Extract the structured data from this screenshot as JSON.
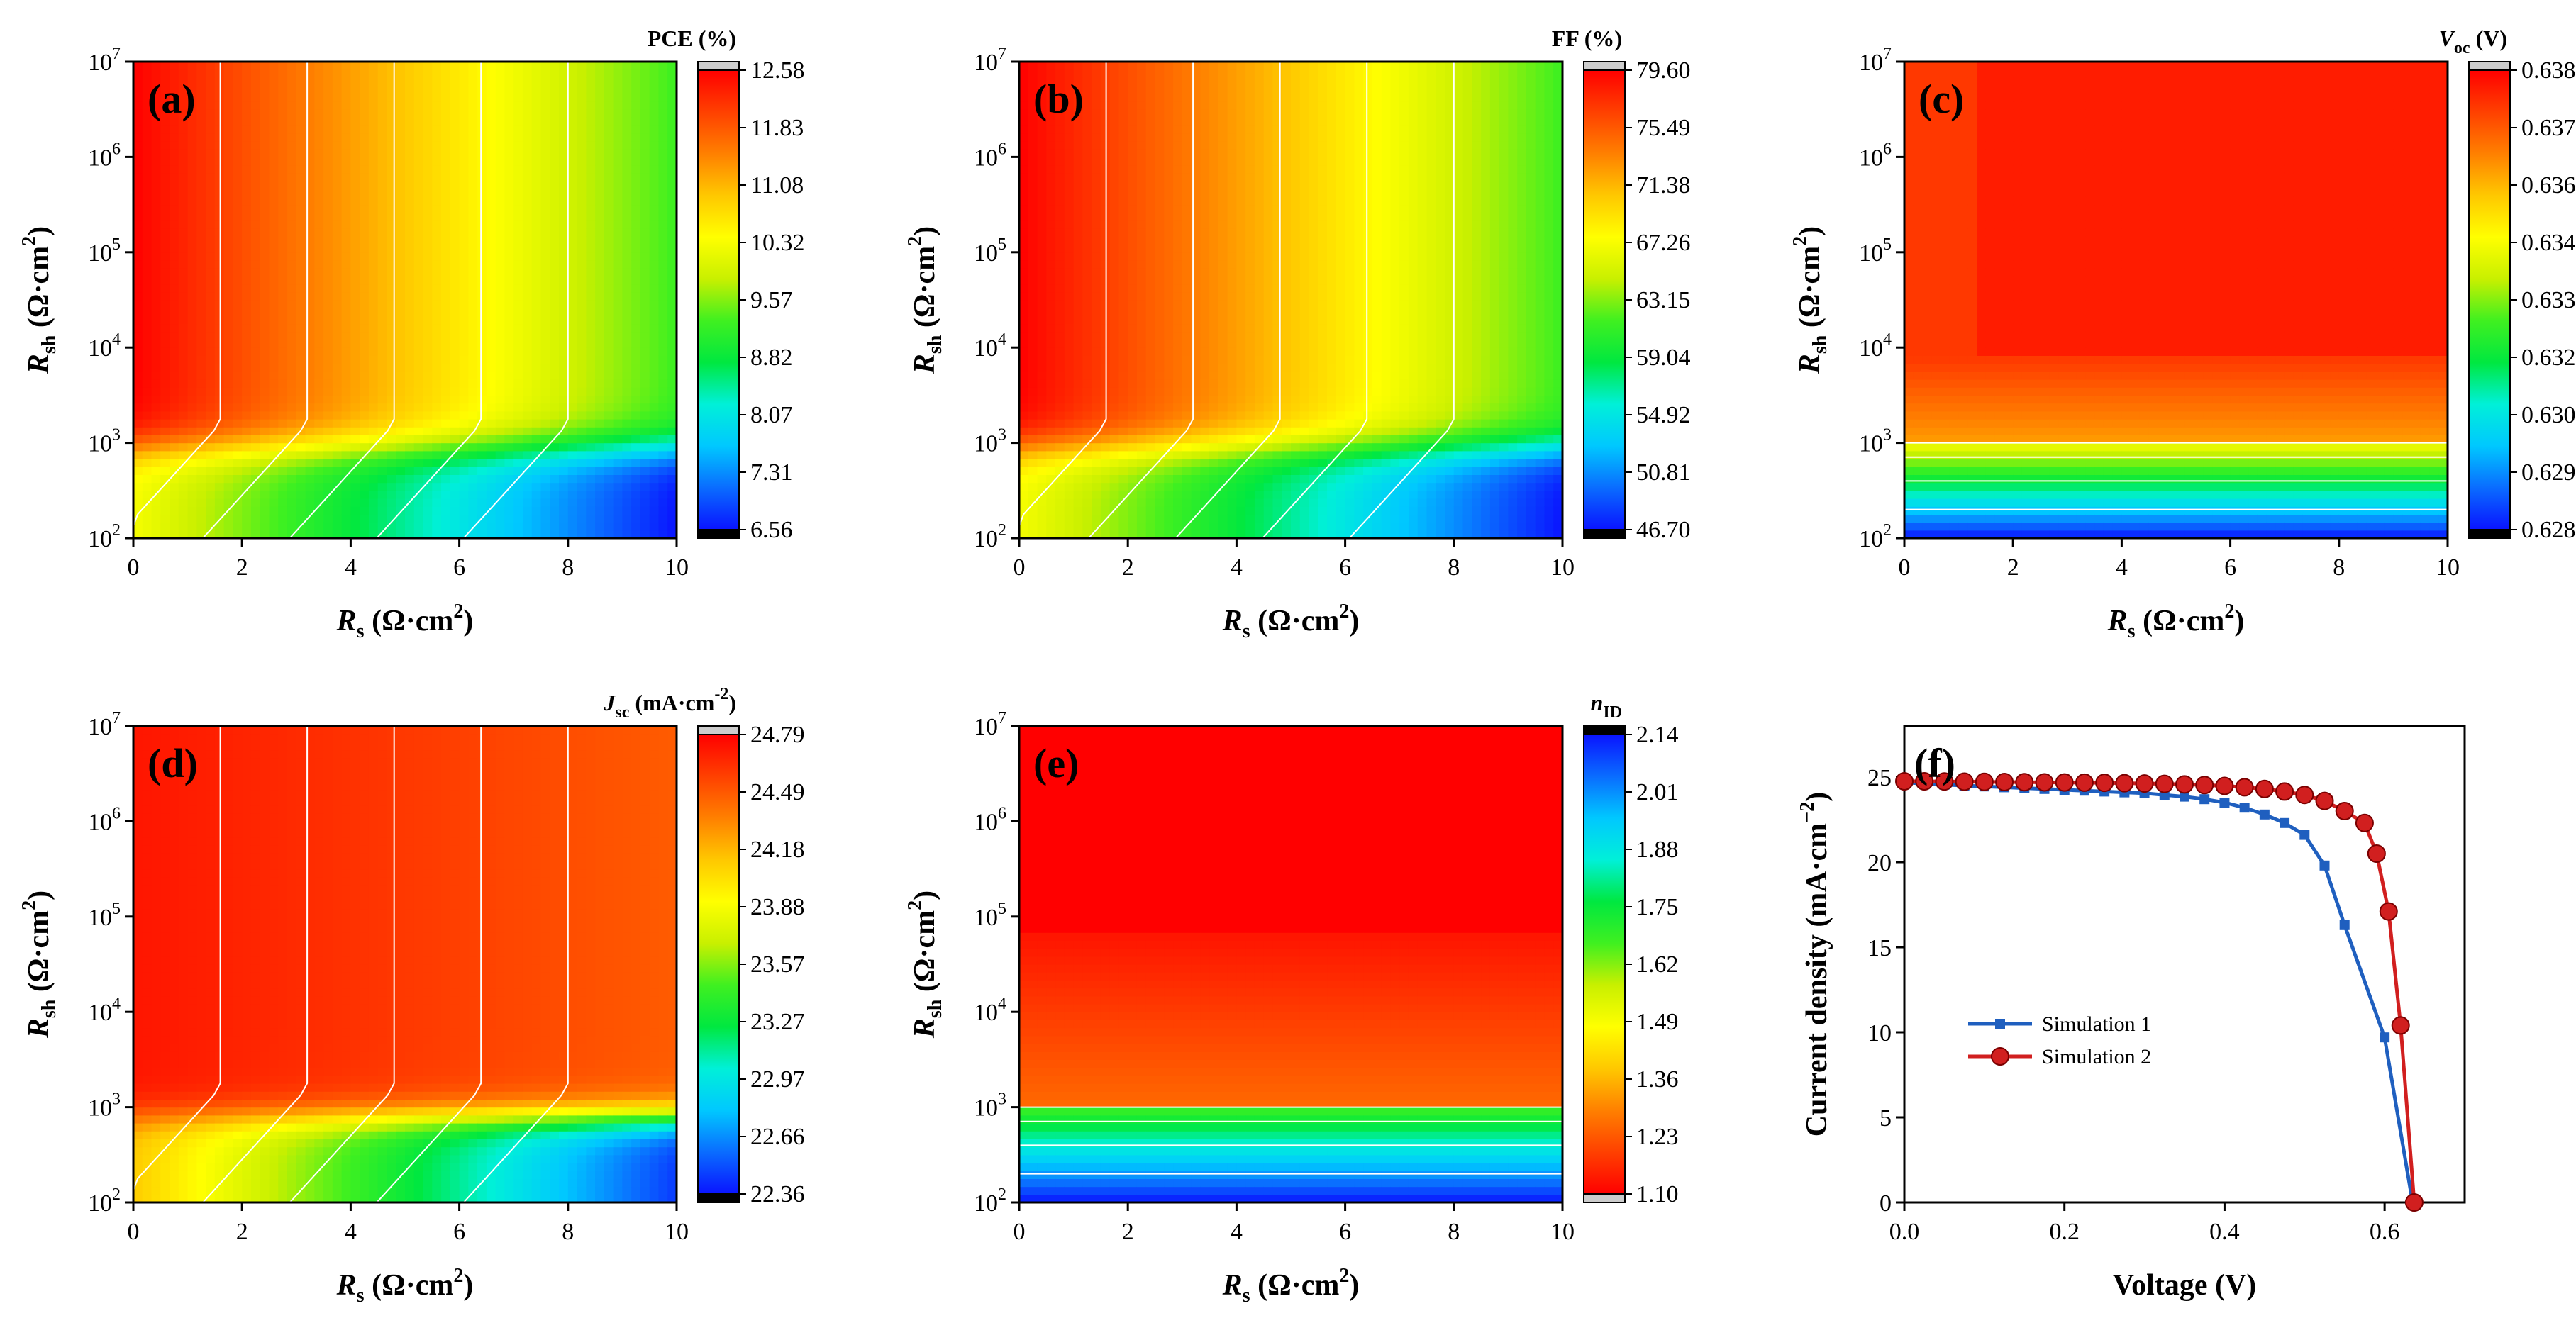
{
  "colormaps": {
    "rainbow": [
      "#0a14ff",
      "#0a6cff",
      "#00c8ff",
      "#00f0d8",
      "#00e840",
      "#40f020",
      "#c8f000",
      "#ffff00",
      "#ffc800",
      "#ff8000",
      "#ff4000",
      "#ff0000"
    ],
    "reverse": [
      "#ff0000",
      "#ff4000",
      "#ff8000",
      "#ffc800",
      "#ffff00",
      "#c8f000",
      "#40f020",
      "#00e840",
      "#00f0d8",
      "#00c8ff",
      "#0a6cff",
      "#0a14ff"
    ]
  },
  "chart_data": [
    {
      "id": "a",
      "panel_label": "(a)",
      "type": "heatmap",
      "title": "PCE (%)",
      "xlabel": "R_s (Ω·cm²)",
      "ylabel": "R_sh (Ω·cm²)",
      "xlabel_main": "R",
      "xlabel_sub": "s",
      "xlabel_unit": " (Ω·cm",
      "xlabel_sup": "2",
      "xlabel_end": ")",
      "ylabel_main": "R",
      "ylabel_sub": "sh",
      "ylabel_unit": " (Ω·cm",
      "ylabel_sup": "2",
      "ylabel_end": ")",
      "x_ticks": [
        "0",
        "2",
        "4",
        "6",
        "8",
        "10"
      ],
      "xlim": [
        0,
        10
      ],
      "y_ticks": [
        {
          "base": "10",
          "exp": "2"
        },
        {
          "base": "10",
          "exp": "3"
        },
        {
          "base": "10",
          "exp": "4"
        },
        {
          "base": "10",
          "exp": "5"
        },
        {
          "base": "10",
          "exp": "6"
        },
        {
          "base": "10",
          "exp": "7"
        }
      ],
      "ylim_log10": [
        2,
        7
      ],
      "colorbar_ticks": [
        "6.56",
        "7.31",
        "8.07",
        "8.82",
        "9.57",
        "10.32",
        "11.08",
        "11.83",
        "12.58"
      ],
      "range": [
        6.56,
        12.58
      ],
      "model": {
        "kind": "linear_rs",
        "max": 12.58,
        "min": 6.56,
        "knee": 3.0,
        "width": 0.18,
        "lowdrop": 2.2
      }
    },
    {
      "id": "b",
      "panel_label": "(b)",
      "type": "heatmap",
      "title": "FF (%)",
      "xlabel": "R_s (Ω·cm²)",
      "ylabel": "R_sh (Ω·cm²)",
      "xlabel_main": "R",
      "xlabel_sub": "s",
      "xlabel_unit": " (Ω·cm",
      "xlabel_sup": "2",
      "xlabel_end": ")",
      "ylabel_main": "R",
      "ylabel_sub": "sh",
      "ylabel_unit": " (Ω·cm",
      "ylabel_sup": "2",
      "ylabel_end": ")",
      "x_ticks": [
        "0",
        "2",
        "4",
        "6",
        "8",
        "10"
      ],
      "xlim": [
        0,
        10
      ],
      "y_ticks": [
        {
          "base": "10",
          "exp": "2"
        },
        {
          "base": "10",
          "exp": "3"
        },
        {
          "base": "10",
          "exp": "4"
        },
        {
          "base": "10",
          "exp": "5"
        },
        {
          "base": "10",
          "exp": "6"
        },
        {
          "base": "10",
          "exp": "7"
        }
      ],
      "ylim_log10": [
        2,
        7
      ],
      "colorbar_ticks": [
        "46.70",
        "50.81",
        "54.92",
        "59.04",
        "63.15",
        "67.26",
        "71.38",
        "75.49",
        "79.60"
      ],
      "range": [
        46.7,
        79.6
      ],
      "model": {
        "kind": "linear_rs",
        "max": 79.6,
        "min": 46.7,
        "knee": 3.0,
        "width": 0.18,
        "lowdrop": 12.0
      }
    },
    {
      "id": "c",
      "panel_label": "(c)",
      "type": "heatmap",
      "title": "V_oc (V)",
      "title_main": "V",
      "title_sub": "oc",
      "title_end": " (V)",
      "xlabel": "R_s (Ω·cm²)",
      "ylabel": "R_sh (Ω·cm²)",
      "xlabel_main": "R",
      "xlabel_sub": "s",
      "xlabel_unit": " (Ω·cm",
      "xlabel_sup": "2",
      "xlabel_end": ")",
      "ylabel_main": "R",
      "ylabel_sub": "sh",
      "ylabel_unit": " (Ω·cm",
      "ylabel_sup": "2",
      "ylabel_end": ")",
      "x_ticks": [
        "0",
        "2",
        "4",
        "6",
        "8",
        "10"
      ],
      "xlim": [
        0,
        10
      ],
      "y_ticks": [
        {
          "base": "10",
          "exp": "2"
        },
        {
          "base": "10",
          "exp": "3"
        },
        {
          "base": "10",
          "exp": "4"
        },
        {
          "base": "10",
          "exp": "5"
        },
        {
          "base": "10",
          "exp": "6"
        },
        {
          "base": "10",
          "exp": "7"
        }
      ],
      "ylim_log10": [
        2,
        7
      ],
      "colorbar_ticks": [
        "0.628",
        "0.629",
        "0.630",
        "0.632",
        "0.633",
        "0.634",
        "0.636",
        "0.637",
        "0.638"
      ],
      "range": [
        0.628,
        0.638
      ],
      "model": {
        "kind": "rsh_voc"
      }
    },
    {
      "id": "d",
      "panel_label": "(d)",
      "type": "heatmap",
      "title": "J_sc (mA·cm⁻²)",
      "title_main": "J",
      "title_sub": "sc",
      "title_end": " (mA·cm",
      "title_sup": "-2",
      "title_end2": ")",
      "xlabel": "R_s (Ω·cm²)",
      "ylabel": "R_sh (Ω·cm²)",
      "xlabel_main": "R",
      "xlabel_sub": "s",
      "xlabel_unit": " (Ω·cm",
      "xlabel_sup": "2",
      "xlabel_end": ")",
      "ylabel_main": "R",
      "ylabel_sub": "sh",
      "ylabel_unit": " (Ω·cm",
      "ylabel_sup": "2",
      "ylabel_end": ")",
      "x_ticks": [
        "0",
        "2",
        "4",
        "6",
        "8",
        "10"
      ],
      "xlim": [
        0,
        10
      ],
      "y_ticks": [
        {
          "base": "10",
          "exp": "2"
        },
        {
          "base": "10",
          "exp": "3"
        },
        {
          "base": "10",
          "exp": "4"
        },
        {
          "base": "10",
          "exp": "5"
        },
        {
          "base": "10",
          "exp": "6"
        },
        {
          "base": "10",
          "exp": "7"
        }
      ],
      "ylim_log10": [
        2,
        7
      ],
      "colorbar_ticks": [
        "22.36",
        "22.66",
        "22.97",
        "23.27",
        "23.57",
        "23.88",
        "24.18",
        "24.49",
        "24.79"
      ],
      "range": [
        22.36,
        24.79
      ],
      "model": {
        "kind": "jsc"
      }
    },
    {
      "id": "e",
      "panel_label": "(e)",
      "type": "heatmap",
      "title": "n_ID",
      "title_main": "n",
      "title_sub": "ID",
      "xlabel": "R_s (Ω·cm²)",
      "ylabel": "R_sh (Ω·cm²)",
      "xlabel_main": "R",
      "xlabel_sub": "s",
      "xlabel_unit": " (Ω·cm",
      "xlabel_sup": "2",
      "xlabel_end": ")",
      "ylabel_main": "R",
      "ylabel_sub": "sh",
      "ylabel_unit": " (Ω·cm",
      "ylabel_sup": "2",
      "ylabel_end": ")",
      "x_ticks": [
        "0",
        "2",
        "4",
        "6",
        "8",
        "10"
      ],
      "xlim": [
        0,
        10
      ],
      "y_ticks": [
        {
          "base": "10",
          "exp": "2"
        },
        {
          "base": "10",
          "exp": "3"
        },
        {
          "base": "10",
          "exp": "4"
        },
        {
          "base": "10",
          "exp": "5"
        },
        {
          "base": "10",
          "exp": "6"
        },
        {
          "base": "10",
          "exp": "7"
        }
      ],
      "ylim_log10": [
        2,
        7
      ],
      "colorbar_ticks": [
        "1.10",
        "1.23",
        "1.36",
        "1.49",
        "1.62",
        "1.75",
        "1.88",
        "2.01",
        "2.14"
      ],
      "range": [
        1.1,
        2.14
      ],
      "colormap": "reverse",
      "model": {
        "kind": "nid"
      }
    },
    {
      "id": "f",
      "panel_label": "(f)",
      "type": "line",
      "xlabel": "Voltage (V)",
      "ylabel": "Current density (mA·cm⁻²)",
      "ylabel_main": "Current density (mA·cm",
      "ylabel_sup": "−2",
      "ylabel_end": ")",
      "xlim": [
        0,
        0.7
      ],
      "ylim": [
        0,
        28
      ],
      "x_ticks": [
        "0.0",
        "0.2",
        "0.4",
        "0.6"
      ],
      "x_tick_values": [
        0,
        0.2,
        0.4,
        0.6
      ],
      "y_ticks": [
        "0",
        "5",
        "10",
        "15",
        "20",
        "25"
      ],
      "y_tick_values": [
        0,
        5,
        10,
        15,
        20,
        25
      ],
      "legend_position": "center-left",
      "series": [
        {
          "name": "Simulation 1",
          "color": "#1f5fbf",
          "marker": "square",
          "x": [
            0.0,
            0.025,
            0.05,
            0.075,
            0.1,
            0.125,
            0.15,
            0.175,
            0.2,
            0.225,
            0.25,
            0.275,
            0.3,
            0.325,
            0.35,
            0.375,
            0.4,
            0.425,
            0.45,
            0.475,
            0.5,
            0.525,
            0.55,
            0.6,
            0.635
          ],
          "y": [
            24.7,
            24.6,
            24.55,
            24.5,
            24.45,
            24.4,
            24.35,
            24.3,
            24.25,
            24.2,
            24.15,
            24.1,
            24.05,
            23.95,
            23.85,
            23.7,
            23.5,
            23.2,
            22.8,
            22.3,
            21.6,
            19.8,
            16.3,
            9.7,
            0.0
          ]
        },
        {
          "name": "Simulation 2",
          "color": "#d11f1f",
          "marker": "circle",
          "x": [
            0.0,
            0.025,
            0.05,
            0.075,
            0.1,
            0.125,
            0.15,
            0.175,
            0.2,
            0.225,
            0.25,
            0.275,
            0.3,
            0.325,
            0.35,
            0.375,
            0.4,
            0.425,
            0.45,
            0.475,
            0.5,
            0.525,
            0.55,
            0.575,
            0.59,
            0.605,
            0.62,
            0.637
          ],
          "y": [
            24.75,
            24.75,
            24.74,
            24.73,
            24.72,
            24.71,
            24.7,
            24.69,
            24.68,
            24.67,
            24.66,
            24.64,
            24.62,
            24.6,
            24.57,
            24.53,
            24.48,
            24.4,
            24.3,
            24.15,
            23.95,
            23.6,
            23.0,
            22.3,
            20.5,
            17.1,
            10.4,
            0.0
          ]
        }
      ]
    }
  ]
}
